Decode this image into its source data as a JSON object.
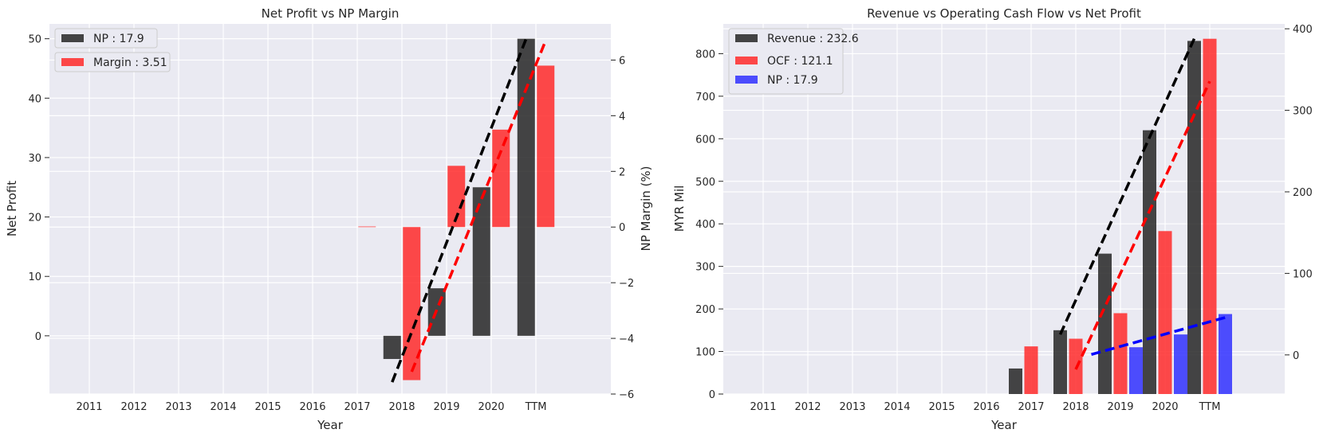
{
  "chart_data": [
    {
      "type": "bar",
      "title": "Net Profit vs NP Margin",
      "xlabel": "Year",
      "ylabel": "Net Profit",
      "y2label": "NP Margin (%)",
      "categories": [
        "2011",
        "2012",
        "2013",
        "2014",
        "2015",
        "2016",
        "2017",
        "2018",
        "2019",
        "2020",
        "TTM"
      ],
      "ylim": [
        -9.8,
        52.5
      ],
      "y2lim": [
        -6,
        7.3
      ],
      "yticks": [
        0,
        10,
        20,
        30,
        40,
        50
      ],
      "y2ticks": [
        -6,
        -4,
        -2,
        0,
        2,
        4,
        6
      ],
      "grid": true,
      "legend_position": "top-left",
      "series": [
        {
          "name": "NP",
          "axis": "left",
          "color": "#262626",
          "values": [
            null,
            null,
            null,
            null,
            null,
            null,
            null,
            -3.9,
            8.0,
            25.0,
            50.0
          ],
          "trend": {
            "color": "#000000",
            "from": 7,
            "to": 10,
            "values": [
              -7.8,
              50.0
            ]
          }
        },
        {
          "name": "Margin",
          "axis": "right",
          "color": "#ff2a2a",
          "values": [
            null,
            null,
            null,
            null,
            null,
            null,
            0.02,
            -5.5,
            2.2,
            3.5,
            5.8
          ],
          "trend": {
            "color": "#ff0000",
            "from": 7,
            "to": 10,
            "values": [
              -5.2,
              6.7
            ]
          }
        }
      ],
      "legend": [
        "NP : 17.9",
        "Margin : 3.51"
      ]
    },
    {
      "type": "bar",
      "title": "Revenue vs Operating Cash Flow vs Net Profit",
      "xlabel": "Year",
      "ylabel": "MYR Mil",
      "categories": [
        "2011",
        "2012",
        "2013",
        "2014",
        "2015",
        "2016",
        "2017",
        "2018",
        "2019",
        "2020",
        "TTM"
      ],
      "ylim": [
        0,
        870
      ],
      "y2lim": [
        -48,
        406
      ],
      "yticks": [
        0,
        100,
        200,
        300,
        400,
        500,
        600,
        700,
        800
      ],
      "y2ticks": [
        0,
        100,
        200,
        300,
        400
      ],
      "grid": true,
      "legend_position": "top-left",
      "series": [
        {
          "name": "Revenue",
          "axis": "left",
          "color": "#262626",
          "values": [
            null,
            null,
            null,
            null,
            null,
            null,
            60,
            150,
            330,
            620,
            830
          ],
          "trend": {
            "color": "#000000",
            "from": 7,
            "to": 10,
            "values": [
              140,
              835
            ]
          }
        },
        {
          "name": "OCF",
          "axis": "left",
          "color": "#ff2a2a",
          "values": [
            null,
            null,
            null,
            null,
            null,
            null,
            112,
            130,
            190,
            383,
            835
          ],
          "trend": {
            "color": "#ff0000",
            "from": 7,
            "to": 10,
            "values": [
              58,
              735
            ]
          }
        },
        {
          "name": "NP",
          "axis": "left",
          "color": "#3030ff",
          "values": [
            null,
            null,
            null,
            null,
            null,
            null,
            null,
            null,
            110,
            140,
            188
          ],
          "trend": {
            "color": "#0000ff",
            "from": 7,
            "to": 10,
            "values": [
              93,
              180
            ]
          }
        }
      ],
      "legend": [
        "Revenue : 232.6",
        "OCF : 121.1",
        "NP : 17.9"
      ]
    }
  ]
}
